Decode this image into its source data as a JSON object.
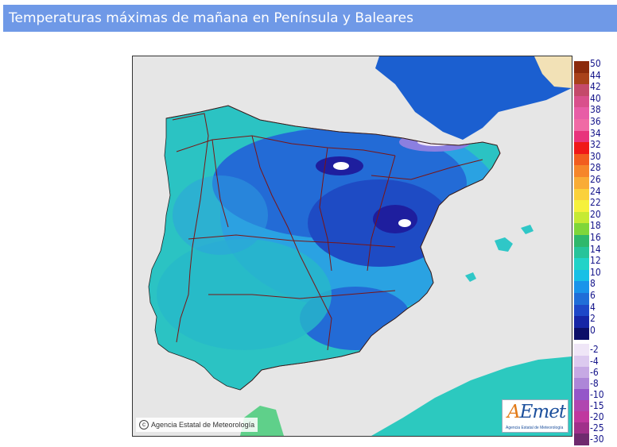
{
  "title": "Temperaturas máximas de mañana en Península y Baleares",
  "credit": "Agencia Estatal de Meteorología",
  "logo": {
    "mark_prefix": "A",
    "mark_rest": "Emet",
    "subtitle": "Agencia Estatal de Meteorología"
  },
  "legend": {
    "upper": [
      {
        "label": "50",
        "color": "#8b2b0c"
      },
      {
        "label": "44",
        "color": "#a9421a"
      },
      {
        "label": "42",
        "color": "#c44a6a"
      },
      {
        "label": "40",
        "color": "#d9508c"
      },
      {
        "label": "38",
        "color": "#e85da6"
      },
      {
        "label": "36",
        "color": "#f06aa5"
      },
      {
        "label": "34",
        "color": "#e8347c"
      },
      {
        "label": "32",
        "color": "#f01818"
      },
      {
        "label": "30",
        "color": "#f25d1f"
      },
      {
        "label": "28",
        "color": "#f6862a"
      },
      {
        "label": "26",
        "color": "#f9ac36"
      },
      {
        "label": "24",
        "color": "#fbd13b"
      },
      {
        "label": "22",
        "color": "#f6f13c"
      },
      {
        "label": "20",
        "color": "#c6ea34"
      },
      {
        "label": "18",
        "color": "#7fd63a"
      },
      {
        "label": "16",
        "color": "#2fb86b"
      },
      {
        "label": "14",
        "color": "#27c49a"
      },
      {
        "label": "12",
        "color": "#22d3c8"
      },
      {
        "label": "10",
        "color": "#18c0e6"
      },
      {
        "label": "8",
        "color": "#1a94ea"
      },
      {
        "label": "6",
        "color": "#206ed8"
      },
      {
        "label": "4",
        "color": "#1e48c8"
      },
      {
        "label": "2",
        "color": "#1626a6"
      },
      {
        "label": "0",
        "color": "#0c0f68"
      }
    ],
    "lower": [
      {
        "label": "-2",
        "color": "#efe6f7"
      },
      {
        "label": "-4",
        "color": "#dccaef"
      },
      {
        "label": "-6",
        "color": "#c6a9e4"
      },
      {
        "label": "-8",
        "color": "#ad86d8"
      },
      {
        "label": "-10",
        "color": "#9456c9"
      },
      {
        "label": "-15",
        "color": "#b046b0"
      },
      {
        "label": "-20",
        "color": "#c0389f"
      },
      {
        "label": "-25",
        "color": "#a0308a"
      },
      {
        "label": "-30",
        "color": "#6f2a6e"
      }
    ]
  }
}
